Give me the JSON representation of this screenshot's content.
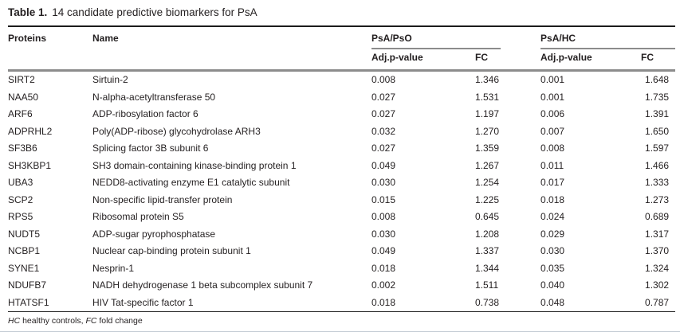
{
  "title": {
    "label": "Table 1.",
    "caption": "14 candidate predictive biomarkers for PsA"
  },
  "table": {
    "headers": {
      "proteins": "Proteins",
      "name": "Name",
      "group_pso": "PsA/PsO",
      "group_hc": "PsA/HC",
      "adj_p": "Adj.p-value",
      "fc": "FC"
    },
    "rows": [
      {
        "protein": "SIRT2",
        "name": "Sirtuin-2",
        "pso_adj_p": "0.008",
        "pso_fc": "1.346",
        "hc_adj_p": "0.001",
        "hc_fc": "1.648"
      },
      {
        "protein": "NAA50",
        "name": "N-alpha-acetyltransferase 50",
        "pso_adj_p": "0.027",
        "pso_fc": "1.531",
        "hc_adj_p": "0.001",
        "hc_fc": "1.735"
      },
      {
        "protein": "ARF6",
        "name": "ADP-ribosylation factor 6",
        "pso_adj_p": "0.027",
        "pso_fc": "1.197",
        "hc_adj_p": "0.006",
        "hc_fc": "1.391"
      },
      {
        "protein": "ADPRHL2",
        "name": "Poly(ADP-ribose) glycohydrolase ARH3",
        "pso_adj_p": "0.032",
        "pso_fc": "1.270",
        "hc_adj_p": "0.007",
        "hc_fc": "1.650"
      },
      {
        "protein": "SF3B6",
        "name": "Splicing factor 3B subunit 6",
        "pso_adj_p": "0.027",
        "pso_fc": "1.359",
        "hc_adj_p": "0.008",
        "hc_fc": "1.597"
      },
      {
        "protein": "SH3KBP1",
        "name": "SH3 domain-containing kinase-binding protein 1",
        "pso_adj_p": "0.049",
        "pso_fc": "1.267",
        "hc_adj_p": "0.011",
        "hc_fc": "1.466"
      },
      {
        "protein": "UBA3",
        "name": "NEDD8-activating enzyme E1 catalytic subunit",
        "pso_adj_p": "0.030",
        "pso_fc": "1.254",
        "hc_adj_p": "0.017",
        "hc_fc": "1.333"
      },
      {
        "protein": "SCP2",
        "name": "Non-specific lipid-transfer protein",
        "pso_adj_p": "0.015",
        "pso_fc": "1.225",
        "hc_adj_p": "0.018",
        "hc_fc": "1.273"
      },
      {
        "protein": "RPS5",
        "name": "Ribosomal protein S5",
        "pso_adj_p": "0.008",
        "pso_fc": "0.645",
        "hc_adj_p": "0.024",
        "hc_fc": "0.689"
      },
      {
        "protein": "NUDT5",
        "name": "ADP-sugar pyrophosphatase",
        "pso_adj_p": "0.030",
        "pso_fc": "1.208",
        "hc_adj_p": "0.029",
        "hc_fc": "1.317"
      },
      {
        "protein": "NCBP1",
        "name": "Nuclear cap-binding protein subunit 1",
        "pso_adj_p": "0.049",
        "pso_fc": "1.337",
        "hc_adj_p": "0.030",
        "hc_fc": "1.370"
      },
      {
        "protein": "SYNE1",
        "name": "Nesprin-1",
        "pso_adj_p": "0.018",
        "pso_fc": "1.344",
        "hc_adj_p": "0.035",
        "hc_fc": "1.324"
      },
      {
        "protein": "NDUFB7",
        "name": "NADH dehydrogenase 1 beta subcomplex subunit 7",
        "pso_adj_p": "0.002",
        "pso_fc": "1.511",
        "hc_adj_p": "0.040",
        "hc_fc": "1.302"
      },
      {
        "protein": "HTATSF1",
        "name": "HIV Tat-specific factor 1",
        "pso_adj_p": "0.018",
        "pso_fc": "0.738",
        "hc_adj_p": "0.048",
        "hc_fc": "0.787"
      }
    ]
  },
  "footnote": {
    "parts": [
      {
        "text": "HC",
        "italic": true
      },
      {
        "text": " healthy controls, ",
        "italic": false
      },
      {
        "text": "FC",
        "italic": true
      },
      {
        "text": " fold change",
        "italic": false
      }
    ]
  },
  "colors": {
    "text": "#231f20",
    "rule_black": "#1c1c1c",
    "rule_gray": "#8c8c8c"
  }
}
